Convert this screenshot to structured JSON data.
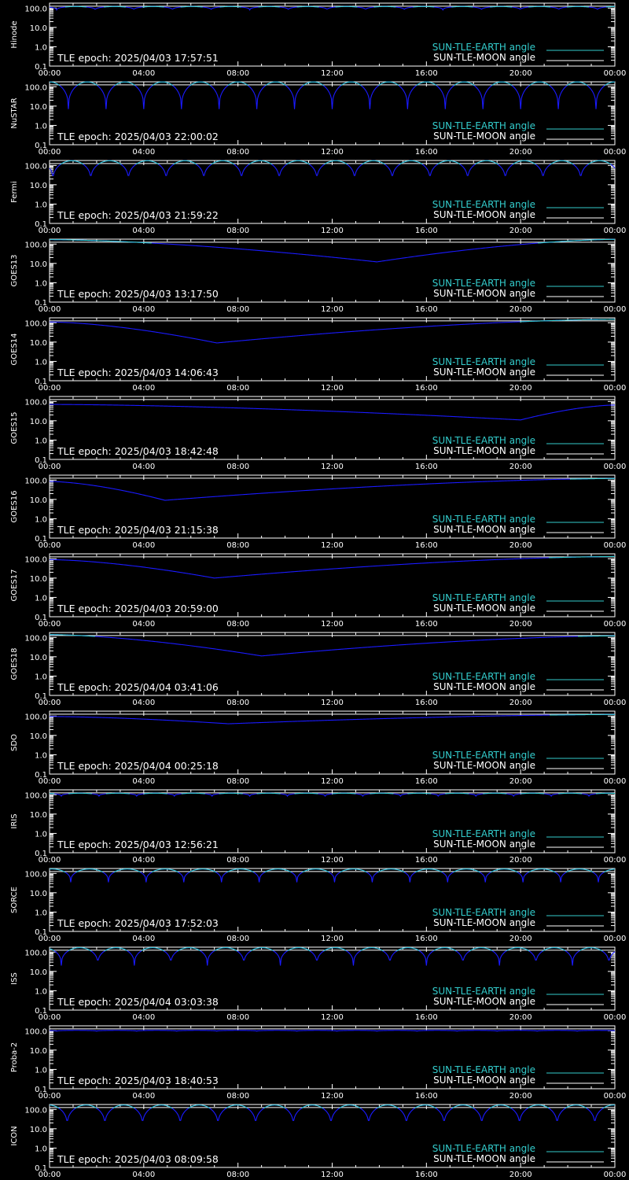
{
  "chart_data": {
    "type": "line",
    "x_range_hours": [
      0,
      24
    ],
    "x_ticks": [
      "00:00",
      "04:00",
      "08:00",
      "12:00",
      "16:00",
      "20:00",
      "00:00"
    ],
    "y_scale": "log",
    "y_range": [
      0.1,
      180
    ],
    "y_ticks": [
      "100.0",
      "10.0",
      "1.0",
      "0.1"
    ],
    "legend": {
      "placement": "bottom-right",
      "entries": [
        {
          "label": "SUN-TLE-EARTH angle",
          "color": "#33cccc"
        },
        {
          "label": "SUN-TLE-MOON angle",
          "color": "#ffffff"
        }
      ]
    },
    "colors": {
      "earth_angle": "#33cccc",
      "earth_angle_below": "#1a1aff",
      "moon_angle": "#ffffff"
    },
    "panels": [
      {
        "satellite": "Hinode",
        "tle_epoch": "TLE epoch: 2025/04/03 17:57:51",
        "earth_angle": {
          "kind": "periodic",
          "period_hours": 1.64,
          "max": 120,
          "min": 80,
          "phase_hours": 0.3
        },
        "moon_angle": 125
      },
      {
        "satellite": "NuSTAR",
        "tle_epoch": "TLE epoch: 2025/04/03 22:00:02",
        "earth_angle": {
          "kind": "periodic",
          "period_hours": 1.6,
          "max": 178,
          "min": 7,
          "phase_hours": 0.8
        },
        "moon_angle": 125
      },
      {
        "satellite": "Fermi",
        "tle_epoch": "TLE epoch: 2025/04/03 21:59:22",
        "earth_angle": {
          "kind": "periodic",
          "period_hours": 1.6,
          "max": 175,
          "min": 14,
          "phase_hours": 0.15
        },
        "moon_angle": 125
      },
      {
        "satellite": "GOES13",
        "tle_epoch": "TLE epoch: 2025/04/03 13:17:50",
        "earth_angle": {
          "kind": "dip",
          "start": 170,
          "dip_hour": 13.9,
          "dip_value": 12,
          "end": 175
        },
        "moon_angle": 125
      },
      {
        "satellite": "GOES14",
        "tle_epoch": "TLE epoch: 2025/04/03 14:06:43",
        "earth_angle": {
          "kind": "dip",
          "start": 110,
          "dip_hour": 7.1,
          "dip_value": 9,
          "end": 150
        },
        "moon_angle": 125
      },
      {
        "satellite": "GOES15",
        "tle_epoch": "TLE epoch: 2025/04/03 18:42:48",
        "earth_angle": {
          "kind": "dip",
          "start": 70,
          "dip_hour": 20,
          "dip_value": 11,
          "end": 65
        },
        "moon_angle": 125
      },
      {
        "satellite": "GOES16",
        "tle_epoch": "TLE epoch: 2025/04/03 21:15:38",
        "earth_angle": {
          "kind": "dip",
          "start": 85,
          "dip_hour": 4.9,
          "dip_value": 9,
          "end": 120
        },
        "moon_angle": 125
      },
      {
        "satellite": "GOES17",
        "tle_epoch": "TLE epoch: 2025/04/03 20:59:00",
        "earth_angle": {
          "kind": "dip",
          "start": 90,
          "dip_hour": 7.0,
          "dip_value": 10,
          "end": 130
        },
        "moon_angle": 125
      },
      {
        "satellite": "GOES18",
        "tle_epoch": "TLE epoch: 2025/04/04 03:41:06",
        "earth_angle": {
          "kind": "dip",
          "start": 140,
          "dip_hour": 9.0,
          "dip_value": 11,
          "end": 120
        },
        "moon_angle": 125
      },
      {
        "satellite": "SDO",
        "tle_epoch": "TLE epoch: 2025/04/04 00:25:18",
        "earth_angle": {
          "kind": "dip",
          "start": 95,
          "dip_hour": 7.6,
          "dip_value": 40,
          "end": 120
        },
        "moon_angle": 125
      },
      {
        "satellite": "IRIS",
        "tle_epoch": "TLE epoch: 2025/04/03 12:56:21",
        "earth_angle": {
          "kind": "periodic",
          "period_hours": 1.6,
          "max": 120,
          "min": 85,
          "phase_hours": 0.5
        },
        "moon_angle": 125
      },
      {
        "satellite": "SORCE",
        "tle_epoch": "TLE epoch: 2025/04/03 17:52:03",
        "earth_angle": {
          "kind": "periodic",
          "period_hours": 1.6,
          "max": 170,
          "min": 35,
          "phase_hours": 0.9
        },
        "moon_angle": 125
      },
      {
        "satellite": "ISS",
        "tle_epoch": "TLE epoch: 2025/04/04 03:03:38",
        "earth_angle": {
          "kind": "periodic",
          "period_hours": 1.55,
          "max": 170,
          "min": 20,
          "phase_hours": 0.5
        },
        "moon_angle": 125
      },
      {
        "satellite": "Proba-2",
        "tle_epoch": "TLE epoch: 2025/04/03 18:40:53",
        "earth_angle": {
          "kind": "periodic",
          "period_hours": 1.7,
          "max": 105,
          "min": 95,
          "phase_hours": 0.3
        },
        "moon_angle": 125
      },
      {
        "satellite": "ICON",
        "tle_epoch": "TLE epoch: 2025/04/03 08:09:58",
        "earth_angle": {
          "kind": "periodic",
          "period_hours": 1.6,
          "max": 170,
          "min": 12,
          "phase_hours": 0.75
        },
        "moon_angle": 125
      }
    ]
  }
}
